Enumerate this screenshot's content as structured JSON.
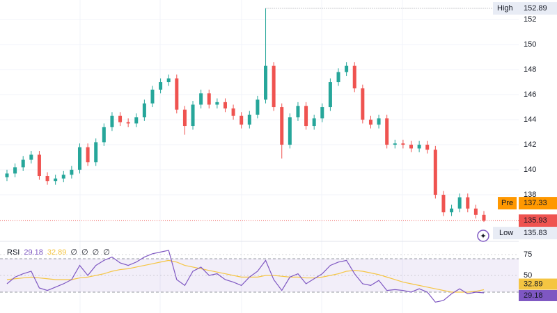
{
  "chart_data": [
    {
      "type": "candlestick",
      "open": [
        139.4,
        139.7,
        140.2,
        140.8,
        141.2,
        139.5,
        139.1,
        139.3,
        139.6,
        140.0,
        141.8,
        140.6,
        142.2,
        143.4,
        144.3,
        143.8,
        143.7,
        144.2,
        145.3,
        146.4,
        147.0,
        147.3,
        144.8,
        143.5,
        145.2,
        146.1,
        145.2,
        145.4,
        144.9,
        144.3,
        143.6,
        144.4,
        145.6,
        148.3,
        145.0,
        142.0,
        144.2,
        145.1,
        143.5,
        144.1,
        145.0,
        147.0,
        147.8,
        148.3,
        146.5,
        144.0,
        143.6,
        144.1,
        142.0,
        142.1,
        142.0,
        141.7,
        142.0,
        141.6,
        138.0,
        136.6,
        136.9,
        137.8,
        136.9,
        136.4
      ],
      "high": [
        140.0,
        140.5,
        141.1,
        141.5,
        141.5,
        139.8,
        139.6,
        139.9,
        140.3,
        142.1,
        142.1,
        142.5,
        143.7,
        144.6,
        144.6,
        144.1,
        144.5,
        145.6,
        146.7,
        147.3,
        147.6,
        147.6,
        145.1,
        145.5,
        146.4,
        146.4,
        145.7,
        145.7,
        145.2,
        144.6,
        144.7,
        145.9,
        152.89,
        148.6,
        145.3,
        144.5,
        145.4,
        145.4,
        144.4,
        145.3,
        147.3,
        148.1,
        148.6,
        148.6,
        146.8,
        144.3,
        144.4,
        144.4,
        142.4,
        142.4,
        142.3,
        142.3,
        142.3,
        141.9,
        138.3,
        137.2,
        138.1,
        138.1,
        137.2,
        136.7
      ],
      "low": [
        139.1,
        139.4,
        139.9,
        140.5,
        139.2,
        138.8,
        138.8,
        139.0,
        139.3,
        139.7,
        140.3,
        140.3,
        141.9,
        143.1,
        143.5,
        143.4,
        143.4,
        143.9,
        145.0,
        146.1,
        146.7,
        144.5,
        142.8,
        143.2,
        144.9,
        144.9,
        144.9,
        144.6,
        144.0,
        143.3,
        143.3,
        144.1,
        145.3,
        144.7,
        140.9,
        141.7,
        143.9,
        143.2,
        143.2,
        143.8,
        144.7,
        146.7,
        147.5,
        146.2,
        143.7,
        143.3,
        143.3,
        141.7,
        141.7,
        141.7,
        141.4,
        141.4,
        141.3,
        137.7,
        136.3,
        136.3,
        136.6,
        136.6,
        136.1,
        135.83
      ],
      "close": [
        139.7,
        140.2,
        140.8,
        141.2,
        139.5,
        139.1,
        139.3,
        139.6,
        140.0,
        141.8,
        140.6,
        142.2,
        143.4,
        144.3,
        143.8,
        143.7,
        144.2,
        145.3,
        146.4,
        147.0,
        147.3,
        144.8,
        143.5,
        145.2,
        146.1,
        145.2,
        145.4,
        144.9,
        144.3,
        143.6,
        144.4,
        145.6,
        148.3,
        145.0,
        142.0,
        144.2,
        145.1,
        143.5,
        144.1,
        145.0,
        147.0,
        147.8,
        148.3,
        146.5,
        144.0,
        143.6,
        144.1,
        142.0,
        142.1,
        142.0,
        141.7,
        142.0,
        141.6,
        138.0,
        136.6,
        136.9,
        137.8,
        136.9,
        136.4,
        135.93
      ],
      "up_color": "#26a69a",
      "down_color": "#ef5350",
      "ylim": [
        134.39,
        153.56
      ],
      "yticks": [
        138,
        140,
        142,
        144,
        146,
        148,
        150,
        152
      ],
      "high_label": "High",
      "low_label": "Low",
      "pre_label": "Pre",
      "pre_value": 137.33,
      "pre_color": "#ff9800"
    },
    {
      "type": "line",
      "title": "RSI",
      "ylim": [
        5,
        88.3
      ],
      "yticks": [
        75,
        50
      ],
      "bands": [
        70,
        30
      ],
      "header_extra": [
        "∅",
        "∅",
        "∅",
        "∅"
      ],
      "series": [
        {
          "color": "#7e57c2",
          "values": [
            40,
            48,
            52,
            55,
            35,
            32,
            36,
            40,
            45,
            62,
            50,
            62,
            68,
            72,
            65,
            62,
            66,
            72,
            76,
            78,
            80,
            45,
            38,
            55,
            60,
            50,
            52,
            45,
            42,
            38,
            48,
            55,
            68,
            45,
            32,
            48,
            52,
            40,
            46,
            52,
            62,
            66,
            68,
            52,
            40,
            38,
            44,
            32,
            33,
            32,
            30,
            34,
            30,
            18,
            20,
            28,
            34,
            28,
            30,
            29.18
          ]
        },
        {
          "color": "#f5c542",
          "values": [
            45,
            46,
            47,
            48,
            47,
            46,
            45,
            45,
            45,
            47,
            48,
            50,
            52,
            55,
            57,
            58,
            60,
            62,
            64,
            66,
            68,
            66,
            62,
            60,
            58,
            56,
            54,
            52,
            50,
            48,
            48,
            48,
            50,
            50,
            49,
            48,
            48,
            47,
            47,
            48,
            50,
            52,
            55,
            56,
            55,
            53,
            51,
            48,
            45,
            42,
            40,
            38,
            36,
            34,
            32,
            30,
            30,
            30,
            31,
            32.89
          ]
        }
      ]
    }
  ]
}
